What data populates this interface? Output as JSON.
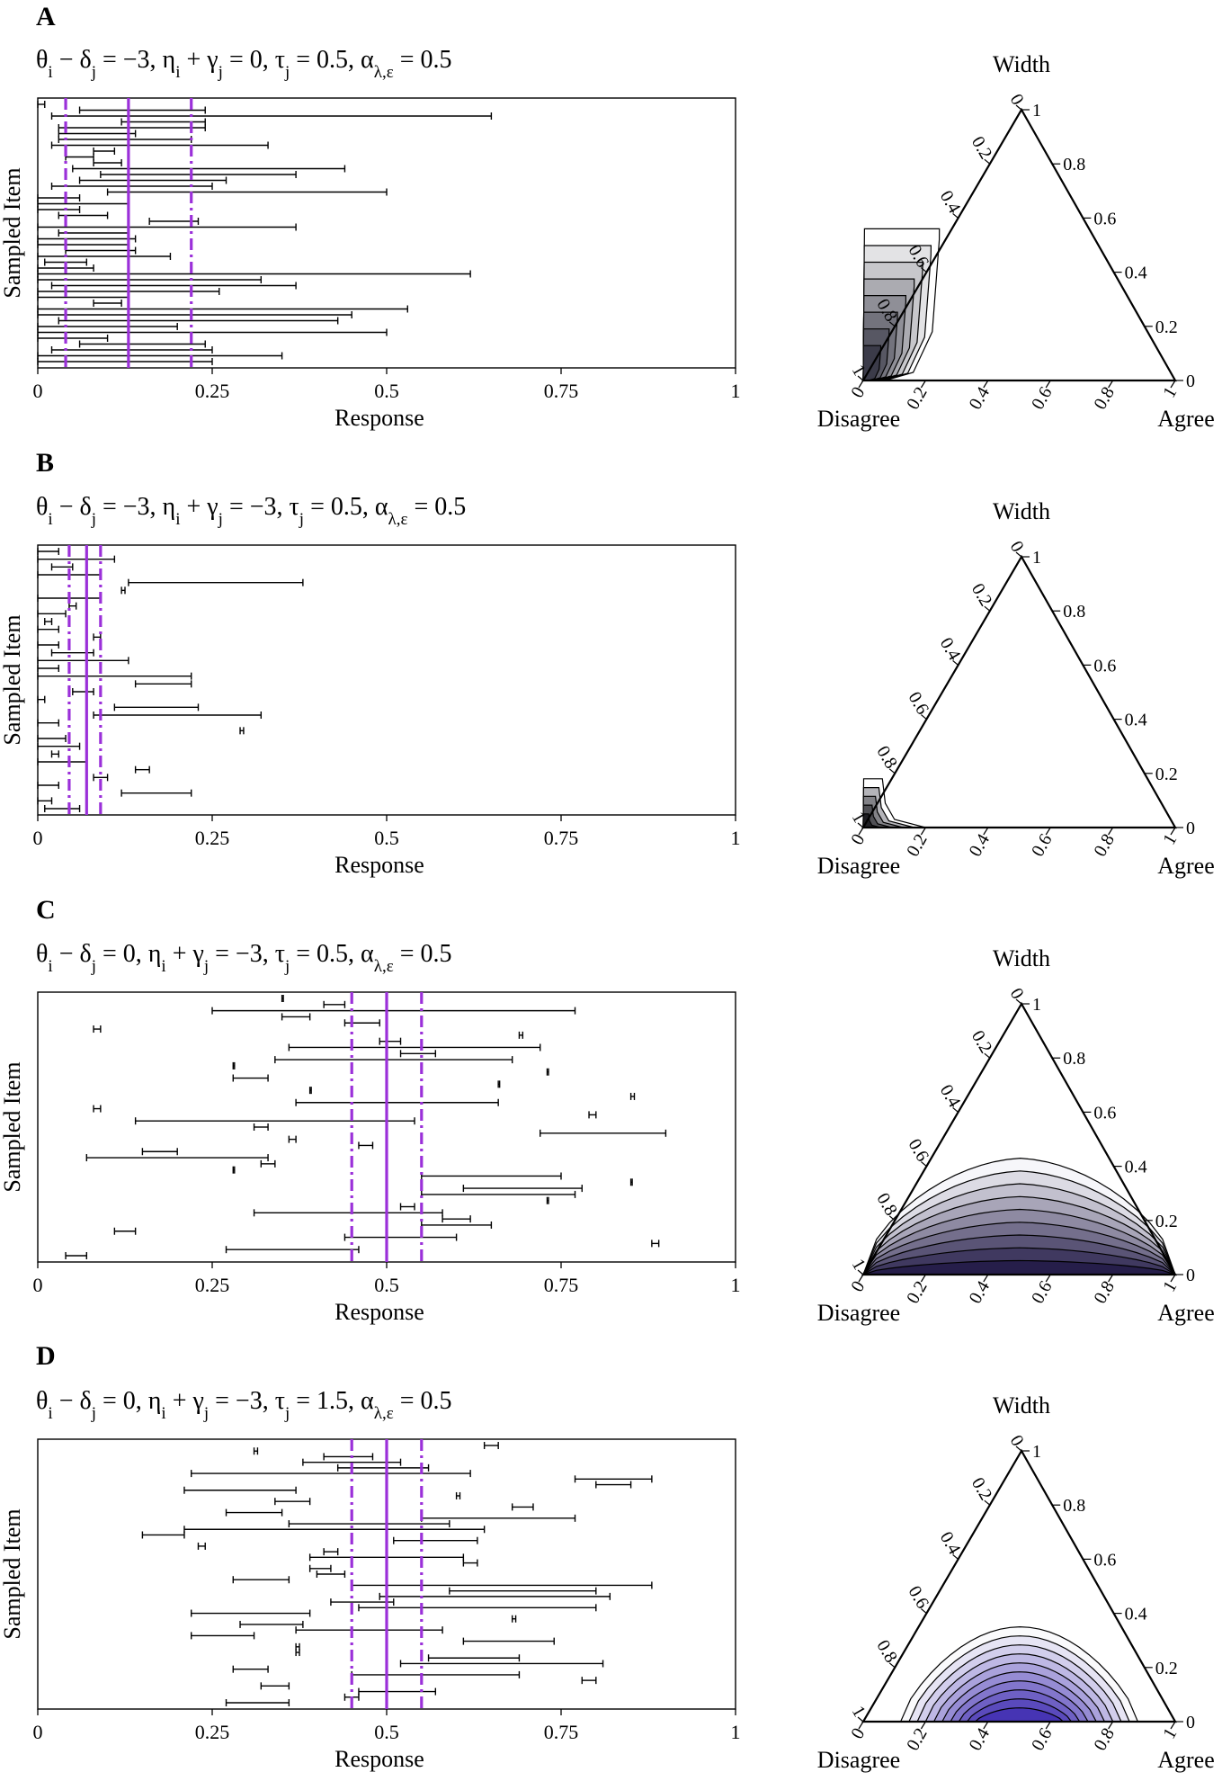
{
  "chart_data": [
    {
      "type": "interval",
      "panel_label": "A",
      "params_label": "θ_i − δ_j = −3,  η_i + γ_j = 0,  τ_j = 0.5,  α_λ,ε = 0.5",
      "xlabel": "Response",
      "ylabel": "Sampled Item",
      "xlim": [
        0,
        1
      ],
      "xticks": [
        "0",
        "0.25",
        "0.5",
        "0.75",
        "1"
      ],
      "reference_lines": {
        "center": 0.13,
        "lower": 0.04,
        "upper": 0.22,
        "color": "#9B30D9"
      },
      "intervals": [
        [
          0.0,
          0.01
        ],
        [
          0.06,
          0.24
        ],
        [
          0.02,
          0.65
        ],
        [
          0.12,
          0.24
        ],
        [
          0.03,
          0.24
        ],
        [
          0.03,
          0.14
        ],
        [
          0.03,
          0.22
        ],
        [
          0.02,
          0.33
        ],
        [
          0.08,
          0.11
        ],
        [
          0.04,
          0.08
        ],
        [
          0.08,
          0.12
        ],
        [
          0.05,
          0.44
        ],
        [
          0.09,
          0.37
        ],
        [
          0.06,
          0.27
        ],
        [
          0.02,
          0.25
        ],
        [
          0.1,
          0.5
        ],
        [
          0.0,
          0.06
        ],
        [
          0.0,
          0.13
        ],
        [
          0.0,
          0.06
        ],
        [
          0.03,
          0.1
        ],
        [
          0.16,
          0.23
        ],
        [
          0.0,
          0.37
        ],
        [
          0.03,
          0.13
        ],
        [
          0.0,
          0.14
        ],
        [
          0.0,
          0.13
        ],
        [
          0.04,
          0.14
        ],
        [
          0.0,
          0.19
        ],
        [
          0.01,
          0.07
        ],
        [
          0.0,
          0.08
        ],
        [
          0.0,
          0.62
        ],
        [
          0.0,
          0.32
        ],
        [
          0.02,
          0.37
        ],
        [
          0.0,
          0.26
        ],
        [
          0.0,
          0.13
        ],
        [
          0.08,
          0.12
        ],
        [
          0.0,
          0.53
        ],
        [
          0.0,
          0.45
        ],
        [
          0.03,
          0.43
        ],
        [
          0.0,
          0.2
        ],
        [
          0.0,
          0.5
        ],
        [
          0.0,
          0.1
        ],
        [
          0.06,
          0.24
        ],
        [
          0.02,
          0.25
        ],
        [
          0.0,
          0.35
        ],
        [
          0.0,
          0.25
        ]
      ],
      "ternary": {
        "vertex_labels": {
          "top": "Width",
          "left": "Disagree",
          "right": "Agree"
        },
        "ticks": [
          "0",
          "0.2",
          "0.4",
          "0.6",
          "0.8",
          "1"
        ],
        "density_focus": "near Disagree vertex, along left edge"
      }
    },
    {
      "type": "interval",
      "panel_label": "B",
      "params_label": "θ_i − δ_j = −3,  η_i + γ_j = −3,  τ_j = 0.5,  α_λ,ε = 0.5",
      "xlabel": "Response",
      "ylabel": "Sampled Item",
      "xlim": [
        0,
        1
      ],
      "xticks": [
        "0",
        "0.25",
        "0.5",
        "0.75",
        "1"
      ],
      "reference_lines": {
        "center": 0.07,
        "lower": 0.045,
        "upper": 0.09,
        "color": "#9B30D9"
      },
      "intervals": [
        [
          0.0,
          0.03
        ],
        [
          0.0,
          0.11
        ],
        [
          0.02,
          0.05
        ],
        [
          0.0,
          0.09
        ],
        [
          0.13,
          0.38
        ],
        [
          0.12,
          0.125
        ],
        [
          0.0,
          0.09
        ],
        [
          0.045,
          0.055
        ],
        [
          0.0,
          0.04
        ],
        [
          0.01,
          0.02
        ],
        [
          0.0,
          0.03
        ],
        [
          0.08,
          0.09
        ],
        [
          0.0,
          0.03
        ],
        [
          0.02,
          0.08
        ],
        [
          0.0,
          0.13
        ],
        [
          0.0,
          0.03
        ],
        [
          0.0,
          0.22
        ],
        [
          0.14,
          0.22
        ],
        [
          0.05,
          0.08
        ],
        [
          0.0,
          0.01
        ],
        [
          0.11,
          0.23
        ],
        [
          0.08,
          0.32
        ],
        [
          0.0,
          0.03
        ],
        [
          0.29,
          0.295
        ],
        [
          0.0,
          0.04
        ],
        [
          0.0,
          0.06
        ],
        [
          0.02,
          0.03
        ],
        [
          0.0,
          0.07
        ],
        [
          0.14,
          0.16
        ],
        [
          0.08,
          0.1
        ],
        [
          0.0,
          0.03
        ],
        [
          0.12,
          0.22
        ],
        [
          0.0,
          0.02
        ],
        [
          0.01,
          0.06
        ]
      ],
      "ternary": {
        "vertex_labels": {
          "top": "Width",
          "left": "Disagree",
          "right": "Agree"
        },
        "ticks": [
          "0",
          "0.2",
          "0.4",
          "0.6",
          "0.8",
          "1"
        ],
        "density_focus": "tight cluster at Disagree vertex"
      }
    },
    {
      "type": "interval",
      "panel_label": "C",
      "params_label": "θ_i − δ_j = 0,  η_i + γ_j = −3,  τ_j = 0.5,  α_λ,ε = 0.5",
      "xlabel": "Response",
      "ylabel": "Sampled Item",
      "xlim": [
        0,
        1
      ],
      "xticks": [
        "0",
        "0.25",
        "0.5",
        "0.75",
        "1"
      ],
      "reference_lines": {
        "center": 0.5,
        "lower": 0.45,
        "upper": 0.55,
        "color": "#9B30D9"
      },
      "intervals": [
        [
          0.35,
          0.35
        ],
        [
          0.41,
          0.44
        ],
        [
          0.25,
          0.77
        ],
        [
          0.35,
          0.39
        ],
        [
          0.44,
          0.49
        ],
        [
          0.08,
          0.09
        ],
        [
          0.69,
          0.695
        ],
        [
          0.49,
          0.52
        ],
        [
          0.36,
          0.72
        ],
        [
          0.52,
          0.57
        ],
        [
          0.34,
          0.68
        ],
        [
          0.28,
          0.28
        ],
        [
          0.73,
          0.73
        ],
        [
          0.28,
          0.33
        ],
        [
          0.66,
          0.66
        ],
        [
          0.39,
          0.39
        ],
        [
          0.85,
          0.855
        ],
        [
          0.37,
          0.66
        ],
        [
          0.08,
          0.09
        ],
        [
          0.79,
          0.8
        ],
        [
          0.14,
          0.54
        ],
        [
          0.31,
          0.33
        ],
        [
          0.72,
          0.9
        ],
        [
          0.36,
          0.37
        ],
        [
          0.46,
          0.48
        ],
        [
          0.15,
          0.2
        ],
        [
          0.07,
          0.33
        ],
        [
          0.32,
          0.34
        ],
        [
          0.28,
          0.28
        ],
        [
          0.55,
          0.75
        ],
        [
          0.85,
          0.85
        ],
        [
          0.61,
          0.78
        ],
        [
          0.55,
          0.77
        ],
        [
          0.73,
          0.73
        ],
        [
          0.52,
          0.54
        ],
        [
          0.31,
          0.58
        ],
        [
          0.58,
          0.62
        ],
        [
          0.55,
          0.65
        ],
        [
          0.11,
          0.14
        ],
        [
          0.44,
          0.6
        ],
        [
          0.88,
          0.89
        ],
        [
          0.27,
          0.46
        ],
        [
          0.04,
          0.07
        ]
      ],
      "ternary": {
        "vertex_labels": {
          "top": "Width",
          "left": "Disagree",
          "right": "Agree"
        },
        "ticks": [
          "0",
          "0.2",
          "0.4",
          "0.6",
          "0.8",
          "1"
        ],
        "density_focus": "spread along bottom edge, centered"
      }
    },
    {
      "type": "interval",
      "panel_label": "D",
      "params_label": "θ_i − δ_j = 0,  η_i + γ_j = −3,  τ_j = 1.5,  α_λ,ε = 0.5",
      "xlabel": "Response",
      "ylabel": "Sampled Item",
      "xlim": [
        0,
        1
      ],
      "xticks": [
        "0",
        "0.25",
        "0.5",
        "0.75",
        "1"
      ],
      "reference_lines": {
        "center": 0.5,
        "lower": 0.45,
        "upper": 0.55,
        "color": "#9B30D9"
      },
      "intervals": [
        [
          0.64,
          0.66
        ],
        [
          0.31,
          0.315
        ],
        [
          0.41,
          0.48
        ],
        [
          0.38,
          0.52
        ],
        [
          0.43,
          0.56
        ],
        [
          0.22,
          0.62
        ],
        [
          0.77,
          0.88
        ],
        [
          0.8,
          0.85
        ],
        [
          0.21,
          0.37
        ],
        [
          0.6,
          0.605
        ],
        [
          0.34,
          0.39
        ],
        [
          0.68,
          0.71
        ],
        [
          0.27,
          0.35
        ],
        [
          0.55,
          0.77
        ],
        [
          0.36,
          0.59
        ],
        [
          0.21,
          0.64
        ],
        [
          0.15,
          0.21
        ],
        [
          0.51,
          0.63
        ],
        [
          0.23,
          0.24
        ],
        [
          0.41,
          0.43
        ],
        [
          0.39,
          0.61
        ],
        [
          0.61,
          0.63
        ],
        [
          0.39,
          0.42
        ],
        [
          0.4,
          0.44
        ],
        [
          0.28,
          0.36
        ],
        [
          0.45,
          0.88
        ],
        [
          0.59,
          0.8
        ],
        [
          0.49,
          0.82
        ],
        [
          0.42,
          0.51
        ],
        [
          0.46,
          0.8
        ],
        [
          0.22,
          0.39
        ],
        [
          0.68,
          0.685
        ],
        [
          0.29,
          0.38
        ],
        [
          0.37,
          0.58
        ],
        [
          0.22,
          0.31
        ],
        [
          0.61,
          0.74
        ],
        [
          0.37,
          0.375
        ],
        [
          0.37,
          0.375
        ],
        [
          0.56,
          0.69
        ],
        [
          0.52,
          0.81
        ],
        [
          0.28,
          0.33
        ],
        [
          0.45,
          0.69
        ],
        [
          0.78,
          0.8
        ],
        [
          0.32,
          0.36
        ],
        [
          0.46,
          0.57
        ],
        [
          0.44,
          0.46
        ],
        [
          0.27,
          0.36
        ]
      ],
      "ternary": {
        "vertex_labels": {
          "top": "Width",
          "left": "Disagree",
          "right": "Agree"
        },
        "ticks": [
          "0",
          "0.2",
          "0.4",
          "0.6",
          "0.8",
          "1"
        ],
        "density_focus": "dome centered on bottom edge, violet core"
      }
    }
  ]
}
